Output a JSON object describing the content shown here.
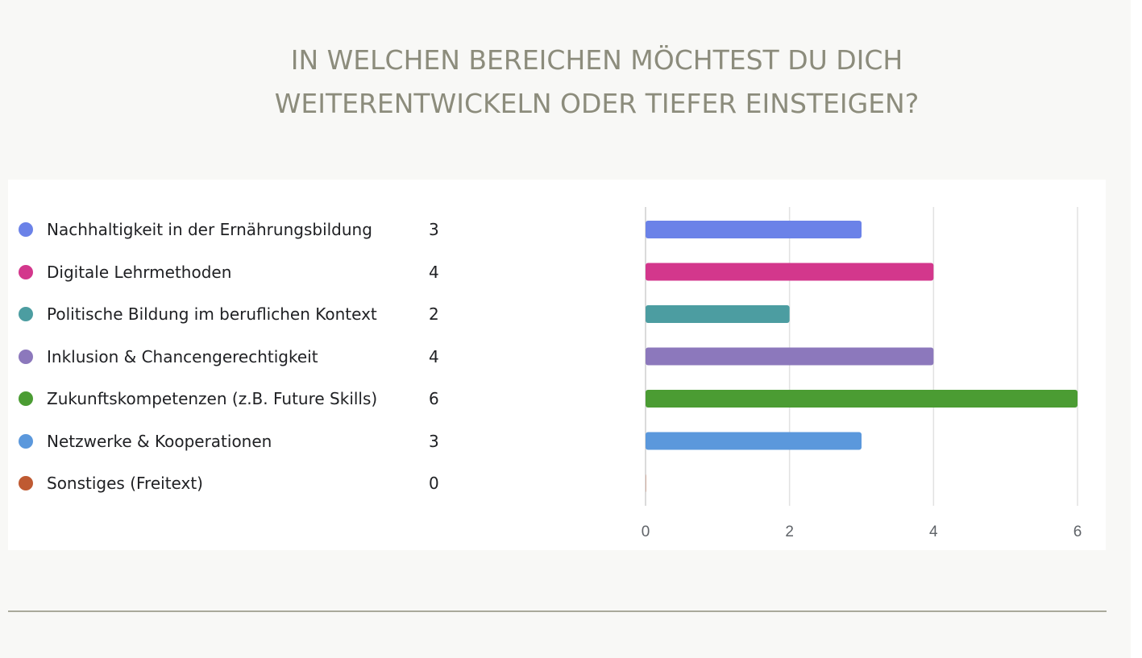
{
  "heading": {
    "line1": "IN WELCHEN BEREICHEN MÖCHTEST DU DICH",
    "line2": "WEITERENTWICKELN ODER TIEFER EINSTEIGEN?"
  },
  "chart_data": {
    "type": "bar",
    "orientation": "horizontal",
    "categories": [
      "Nachhaltigkeit in der Ernährungsbildung",
      "Digitale Lehrmethoden",
      "Politische Bildung im beruflichen Kontext",
      "Inklusion & Chancengerechtigkeit",
      "Zukunftskompetenzen (z.B. Future Skills)",
      "Netzwerke & Kooperationen",
      "Sonstiges (Freitext)"
    ],
    "values": [
      3,
      4,
      2,
      4,
      6,
      3,
      0
    ],
    "colors": [
      "#6b82e8",
      "#d3378c",
      "#4c9da1",
      "#8c78bc",
      "#4b9c33",
      "#5b98dc",
      "#bf5a32"
    ],
    "xticks": [
      0,
      2,
      4,
      6
    ],
    "xlim": [
      0,
      6
    ],
    "grid": true,
    "legend_position": "left"
  }
}
